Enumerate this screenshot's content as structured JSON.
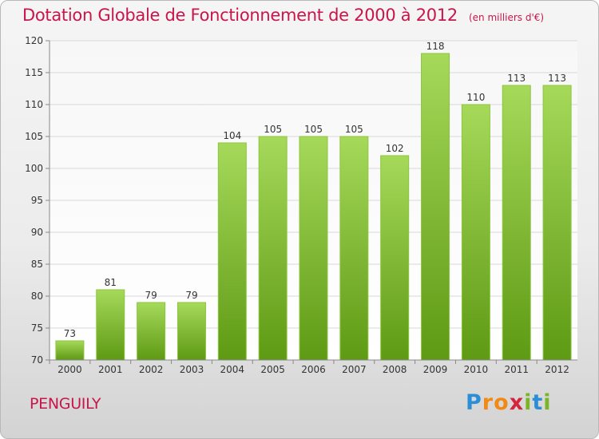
{
  "header": {
    "title": "Dotation Globale de Fonctionnement de 2000 à 2012",
    "unit": "(en milliers d'€)"
  },
  "footer": {
    "commune": "PENGUILY",
    "logo_text": "Proxiti",
    "logo_letters": [
      {
        "ch": "P",
        "color": "#2a8fd6"
      },
      {
        "ch": "r",
        "color": "#f08a14"
      },
      {
        "ch": "o",
        "color": "#f08a14"
      },
      {
        "ch": "x",
        "color": "#d4233a"
      },
      {
        "ch": "i",
        "color": "#7ab526"
      },
      {
        "ch": "t",
        "color": "#2a8fd6"
      },
      {
        "ch": "i",
        "color": "#7ab526"
      }
    ]
  },
  "colors": {
    "bar_top": "#a6d95a",
    "bar_bottom": "#5e9a14",
    "text": "#333333",
    "axis": "#888888",
    "grid": "#d8d8d8",
    "accent": "#c8154a"
  },
  "chart_data": {
    "type": "bar",
    "title": "Dotation Globale de Fonctionnement de 2000 à 2012",
    "subtitle": "(en milliers d'€)",
    "categories": [
      "2000",
      "2001",
      "2002",
      "2003",
      "2004",
      "2005",
      "2006",
      "2007",
      "2008",
      "2009",
      "2010",
      "2011",
      "2012"
    ],
    "values": [
      73,
      81,
      79,
      79,
      104,
      105,
      105,
      105,
      102,
      118,
      110,
      113,
      113
    ],
    "ylim": [
      70,
      120
    ],
    "yticks": [
      70,
      75,
      80,
      85,
      90,
      95,
      100,
      105,
      110,
      115,
      120
    ],
    "grid": true,
    "legend": "none",
    "data_labels": true
  }
}
